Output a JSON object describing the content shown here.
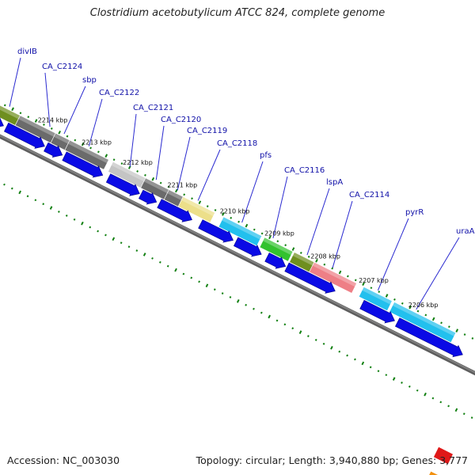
{
  "title": "Clostridium acetobutylicum ATCC 824, complete genome",
  "footer": {
    "accession": "Accession: NC_003030",
    "summary": "Topology: circular; Length: 3,940,880 bp; Genes: 3,777"
  },
  "colors": {
    "backbone": "#808080",
    "cds_strand": "#0a0ae6",
    "tick_dots": "#128012",
    "label_text": "#1010a8",
    "leader_line": "#2a2ad0"
  },
  "genes": [
    {
      "name": "divIB",
      "color": "#6f8f1f"
    },
    {
      "name": "CA_C2124",
      "color": "#6b6b6b"
    },
    {
      "name": "sbp",
      "color": "#6b6b6b"
    },
    {
      "name": "CA_C2122",
      "color": "#6b6b6b"
    },
    {
      "name": "CA_C2121",
      "color": "#c4c4c4"
    },
    {
      "name": "CA_C2120",
      "color": "#6b6b6b"
    },
    {
      "name": "CA_C2119",
      "color": "#6b6b6b"
    },
    {
      "name": "CA_C2118",
      "color": "#ecdf8a"
    },
    {
      "name": "pfs",
      "color": "#22c0ee"
    },
    {
      "name": "CA_C2116",
      "color": "#33c22e"
    },
    {
      "name": "lspA",
      "color": "#6f8f1f"
    },
    {
      "name": "CA_C2114",
      "color": "#ee7f86"
    },
    {
      "name": "pyrR",
      "color": "#22c0ee"
    },
    {
      "name": "uraA",
      "color": "#22c0ee"
    }
  ],
  "ticks": [
    "2214 kbp",
    "2213 kbp",
    "2212 kbp",
    "2211 kbp",
    "2210 kbp",
    "2209 kbp",
    "2208 kbp",
    "2207 kbp",
    "2206 kbp"
  ]
}
